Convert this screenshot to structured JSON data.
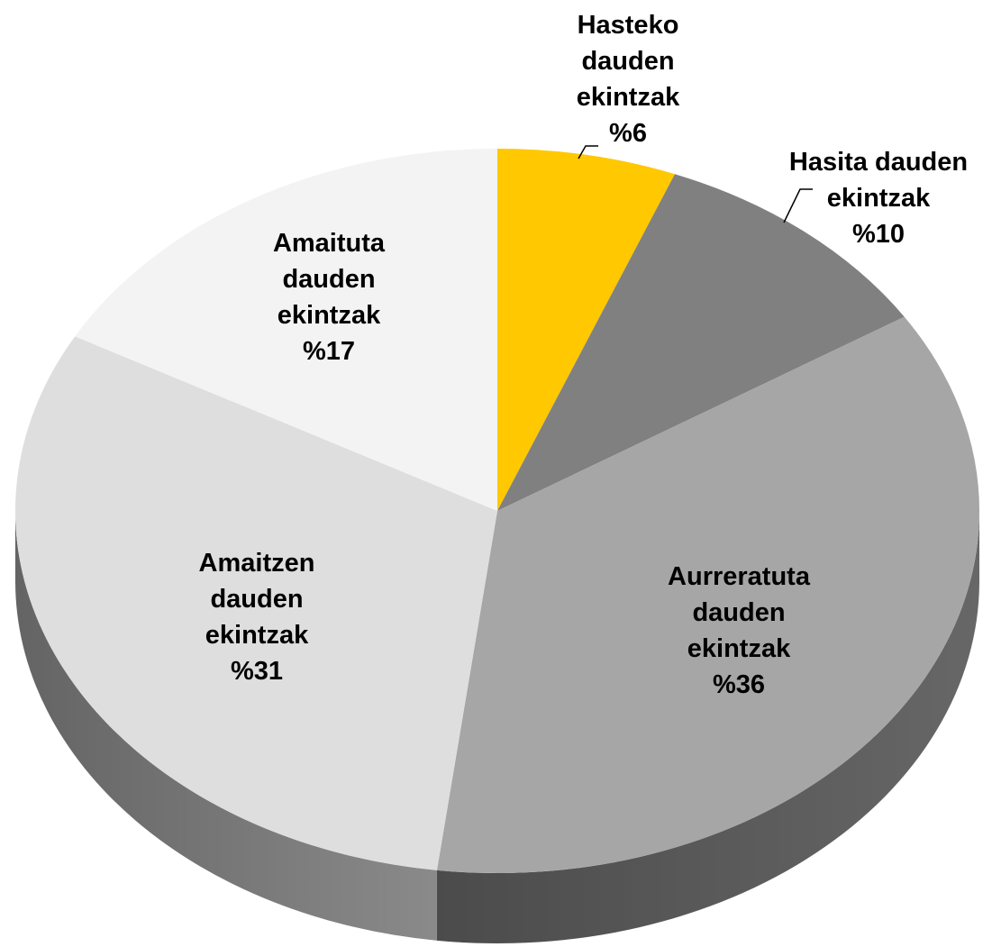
{
  "chart_data": {
    "type": "pie",
    "categories": [
      "Hasteko dauden ekintzak",
      "Hasita dauden ekintzak",
      "Aurreratuta dauden ekintzak",
      "Amaitzen dauden ekintzak",
      "Amaituta dauden ekintzak"
    ],
    "values": [
      6,
      10,
      36,
      31,
      17
    ],
    "value_labels": [
      "%6",
      "%10",
      "%36",
      "%31",
      "%17"
    ],
    "colors": [
      "#ffc800",
      "#808080",
      "#a6a6a6",
      "#dedede",
      "#f3f3f3"
    ]
  }
}
